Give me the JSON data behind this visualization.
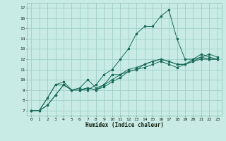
{
  "xlabel": "Humidex (Indice chaleur)",
  "background_color": "#c8ebe5",
  "grid_color": "#a0cfc8",
  "line_color": "#1a6b5a",
  "xlim": [
    -0.5,
    23.5
  ],
  "ylim": [
    6.5,
    17.5
  ],
  "xticks": [
    0,
    1,
    2,
    3,
    4,
    5,
    6,
    7,
    8,
    9,
    10,
    11,
    12,
    13,
    14,
    15,
    16,
    17,
    18,
    19,
    20,
    21,
    22,
    23
  ],
  "yticks": [
    7,
    8,
    9,
    10,
    11,
    12,
    13,
    14,
    15,
    16,
    17
  ],
  "lines": [
    [
      7.0,
      7.0,
      8.2,
      9.5,
      9.5,
      9.0,
      9.0,
      9.0,
      9.5,
      10.5,
      11.0,
      12.0,
      13.0,
      14.5,
      15.2,
      15.2,
      16.2,
      16.8,
      14.0,
      12.0,
      12.0,
      12.2,
      12.5,
      12.2
    ],
    [
      7.0,
      7.0,
      8.2,
      9.5,
      9.8,
      9.0,
      9.2,
      10.0,
      9.2,
      9.5,
      10.5,
      10.5,
      10.8,
      11.0,
      11.5,
      11.8,
      12.0,
      11.8,
      11.5,
      11.5,
      12.0,
      12.5,
      12.2,
      12.0
    ],
    [
      7.0,
      7.0,
      7.5,
      8.5,
      9.5,
      9.0,
      9.0,
      9.2,
      9.0,
      9.5,
      10.0,
      10.5,
      11.0,
      11.2,
      11.5,
      11.8,
      12.0,
      11.8,
      11.5,
      11.5,
      11.8,
      12.2,
      12.0,
      12.0
    ],
    [
      7.0,
      7.0,
      7.5,
      8.5,
      9.5,
      9.0,
      9.0,
      9.2,
      9.0,
      9.3,
      9.8,
      10.2,
      10.8,
      11.0,
      11.2,
      11.5,
      11.8,
      11.5,
      11.2,
      11.5,
      11.8,
      12.0,
      12.0,
      12.0
    ]
  ],
  "figwidth": 3.2,
  "figheight": 2.0,
  "dpi": 100
}
